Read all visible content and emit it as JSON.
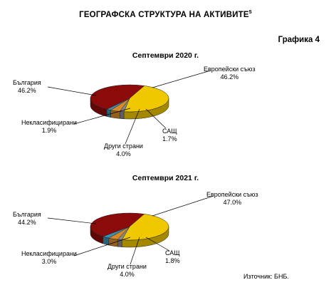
{
  "header": {
    "title": "ГЕОГРАФСКА СТРУКТУРА НА АКТИВИТЕ",
    "title_footnote": "5",
    "graph_number": "Графика 4"
  },
  "source": "Източник:  БНБ.",
  "chart_data": [
    {
      "type": "pie",
      "title": "Септември 2020 г.",
      "slices": [
        {
          "label": "Европейски съюз",
          "value_text": "46.2%",
          "value": 46.2,
          "color": "#f0c800"
        },
        {
          "label": "САЩ",
          "value_text": "1.7%",
          "value": 1.7,
          "color": "#8a8a8a"
        },
        {
          "label": "Други страни",
          "value_text": "4.0%",
          "value": 4.0,
          "color": "#d98a28"
        },
        {
          "label": "Некласифицирани",
          "value_text": "1.9%",
          "value": 1.9,
          "color": "#3d8fb0"
        },
        {
          "label": "България",
          "value_text": "46.2%",
          "value": 46.2,
          "color": "#8b0a0a"
        }
      ]
    },
    {
      "type": "pie",
      "title": "Септември 2021 г.",
      "slices": [
        {
          "label": "Европейски съюз",
          "value_text": "47.0%",
          "value": 47.0,
          "color": "#f0c800"
        },
        {
          "label": "САЩ",
          "value_text": "1.8%",
          "value": 1.8,
          "color": "#8a8a8a"
        },
        {
          "label": "Други страни",
          "value_text": "4.0%",
          "value": 4.0,
          "color": "#d98a28"
        },
        {
          "label": "Некласифицирани",
          "value_text": "3.0%",
          "value": 3.0,
          "color": "#3d8fb0"
        },
        {
          "label": "България",
          "value_text": "44.2%",
          "value": 44.2,
          "color": "#8b0a0a"
        }
      ]
    }
  ]
}
